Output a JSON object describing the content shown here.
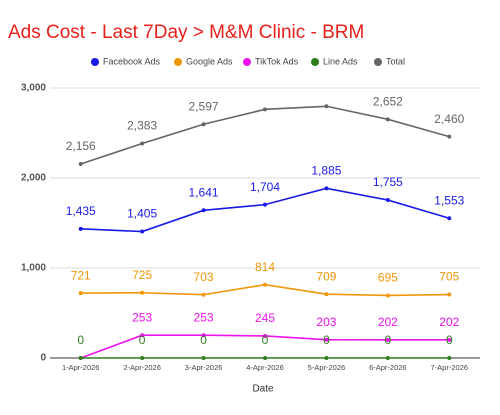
{
  "chart_data": {
    "type": "line",
    "title": "Ads Cost - Last 7Day > M&M Clinic - BRM",
    "x_label": "Date",
    "categories": [
      "1-Apr-2026",
      "2-Apr-2026",
      "3-Apr-2026",
      "4-Apr-2026",
      "5-Apr-2026",
      "6-Apr-2026",
      "7-Apr-2026"
    ],
    "series": [
      {
        "name": "Facebook Ads",
        "color": "#1a1ae6",
        "values": [
          1435,
          1405,
          1641,
          1704,
          1885,
          1755,
          1553
        ],
        "value_labels": [
          "1,435",
          "1,405",
          "1,641",
          "1,704",
          "1,885",
          "1,755",
          "1,553"
        ]
      },
      {
        "name": "Google Ads",
        "color": "#f0960a",
        "values": [
          721,
          725,
          703,
          814,
          709,
          695,
          705
        ]
      },
      {
        "name": "TikTok Ads",
        "color": "#ee12ee",
        "values": [
          0,
          253,
          253,
          245,
          203,
          202,
          202
        ],
        "value_labels": [
          null,
          "253",
          "253",
          "245",
          "203",
          "202",
          "202"
        ]
      },
      {
        "name": "Line Ads",
        "color": "#2e7d1e",
        "values": [
          0,
          0,
          0,
          0,
          0,
          0,
          0
        ]
      },
      {
        "name": "Total",
        "color": "#666666",
        "values": [
          2156,
          2383,
          2597,
          2763,
          2797,
          2652,
          2460
        ],
        "value_labels": [
          "2,156",
          "2,383",
          "2,597",
          null,
          null,
          "2,652",
          "2,460"
        ]
      }
    ],
    "ylim": [
      0,
      3000
    ],
    "yticks": [
      0,
      {
        "value": 1000,
        "label": "1,000"
      },
      {
        "value": 2000,
        "label": "2,000"
      },
      {
        "value": 3000,
        "label": "3,000"
      }
    ],
    "grid": true,
    "legend": "top"
  }
}
